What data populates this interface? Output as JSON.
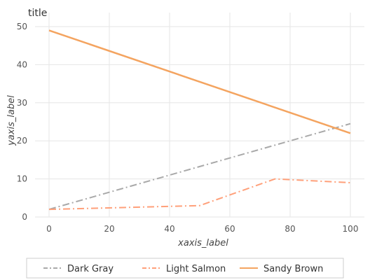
{
  "chart_data": {
    "type": "line",
    "title": "title",
    "xlabel": "xaxis_label",
    "ylabel": "yaxis_label",
    "xlim": [
      0,
      100
    ],
    "ylim": [
      0,
      50
    ],
    "x_ticks": [
      0,
      20,
      40,
      60,
      80,
      100
    ],
    "y_ticks": [
      0,
      10,
      20,
      30,
      40,
      50
    ],
    "grid": true,
    "legend_position": "bottom",
    "series": [
      {
        "name": "Dark Gray",
        "color": "#a9a9a9",
        "dash": "dash-dot",
        "points": [
          [
            0,
            2
          ],
          [
            100,
            24.5
          ]
        ]
      },
      {
        "name": "Light Salmon",
        "color": "#ffa07a",
        "dash": "dash-dot",
        "points": [
          [
            0,
            2
          ],
          [
            50,
            3
          ],
          [
            75,
            10
          ],
          [
            100,
            9
          ]
        ]
      },
      {
        "name": "Sandy Brown",
        "color": "#f4a460",
        "dash": "solid",
        "points": [
          [
            0,
            49
          ],
          [
            100,
            22
          ]
        ]
      }
    ]
  }
}
